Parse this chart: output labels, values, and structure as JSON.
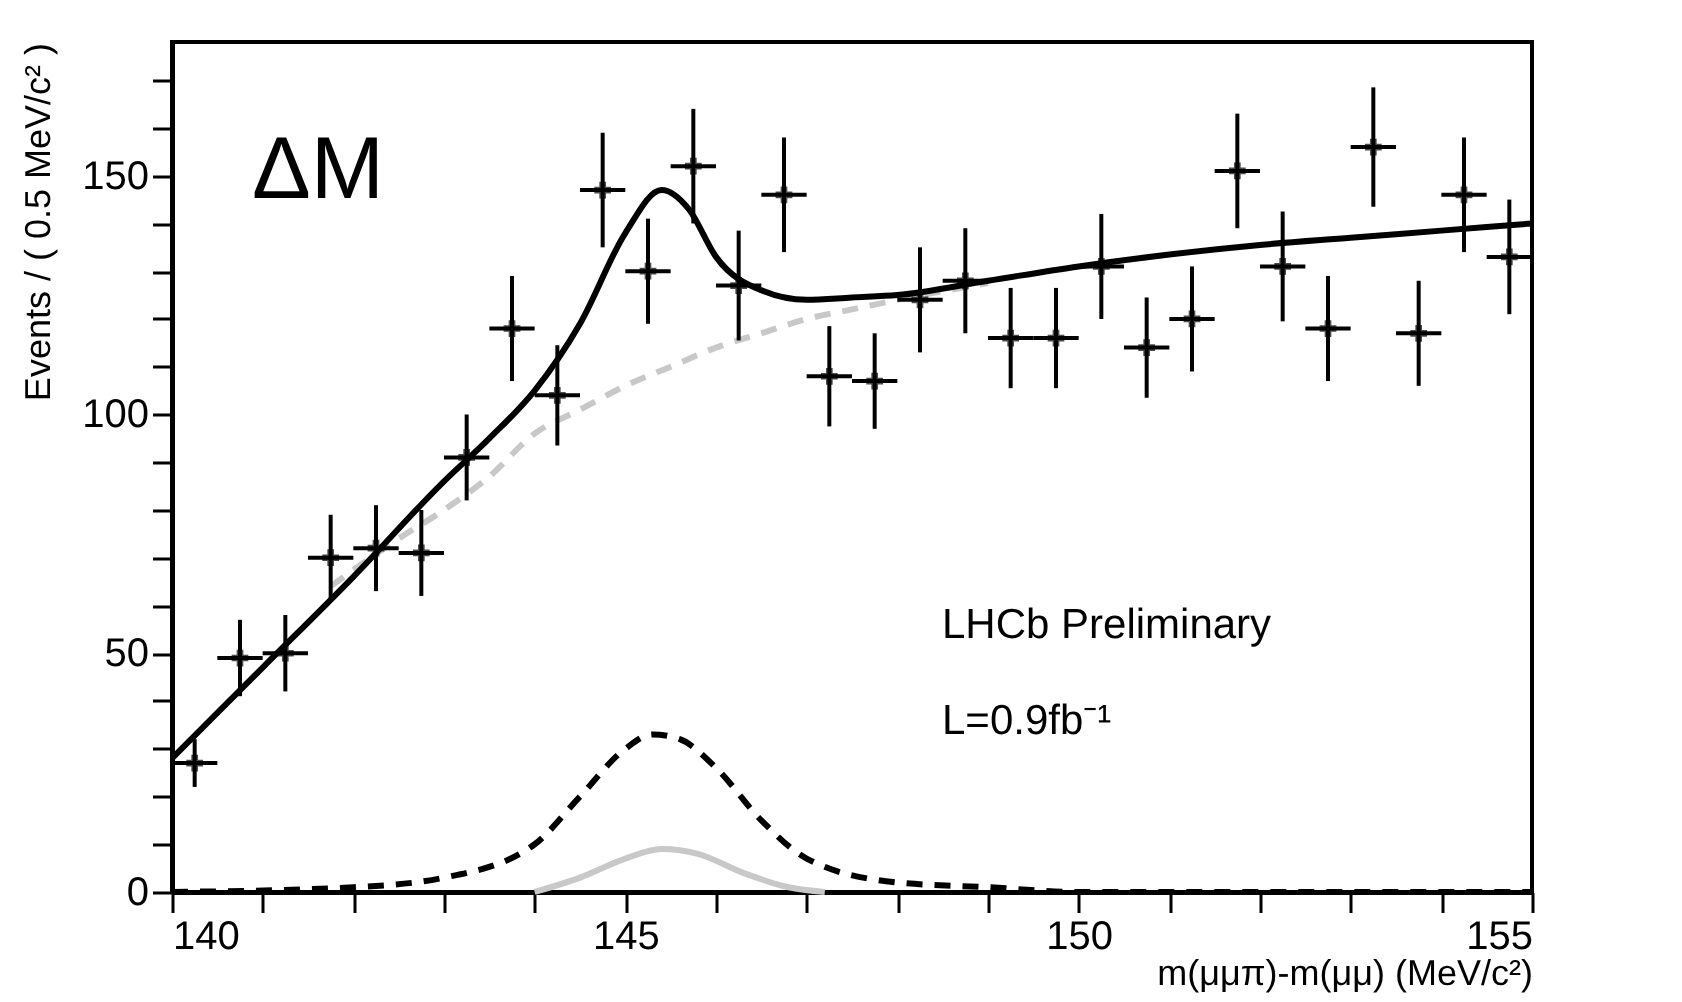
{
  "chart_data": {
    "type": "scatter",
    "xlabel": "m(μμπ)-m(μμ) (MeV/c²)",
    "ylabel": "Events / ( 0.5 MeV/c² )",
    "xlim": [
      140,
      155
    ],
    "ylim": [
      0,
      178
    ],
    "xticks": [
      140,
      {
        "value": 141,
        "label": null
      },
      {
        "value": 142,
        "label": null
      },
      {
        "value": 143,
        "label": null
      },
      {
        "value": 144,
        "label": null
      },
      145,
      {
        "value": 146,
        "label": null
      },
      {
        "value": 147,
        "label": null
      },
      {
        "value": 148,
        "label": null
      },
      {
        "value": 149,
        "label": null
      },
      150,
      {
        "value": 151,
        "label": null
      },
      {
        "value": 152,
        "label": null
      },
      {
        "value": 153,
        "label": null
      },
      {
        "value": 154,
        "label": null
      },
      155
    ],
    "yticks": [
      0,
      {
        "value": 10,
        "label": null
      },
      {
        "value": 20,
        "label": null
      },
      {
        "value": 30,
        "label": null
      },
      {
        "value": 40,
        "label": null
      },
      50,
      {
        "value": 60,
        "label": null
      },
      {
        "value": 70,
        "label": null
      },
      {
        "value": 80,
        "label": null
      },
      {
        "value": 90,
        "label": null
      },
      100,
      {
        "value": 110,
        "label": null
      },
      {
        "value": 120,
        "label": null
      },
      {
        "value": 130,
        "label": null
      },
      {
        "value": 140,
        "label": null
      },
      150,
      {
        "value": 160,
        "label": null
      },
      {
        "value": 170,
        "label": null
      }
    ],
    "annotations": [
      "ΔM",
      "LHCb Preliminary",
      "L=0.9fb⁻¹"
    ],
    "series": [
      {
        "type": "line",
        "color": "#c8c8c8",
        "line_style": "dashed",
        "x": [
          141.75,
          142.5,
          143,
          143.5,
          144,
          144.5,
          145,
          145.5,
          146,
          146.5,
          147,
          147.5,
          148,
          149
        ],
        "values": [
          64,
          74,
          80,
          87,
          96,
          101,
          106,
          110,
          114,
          117,
          120,
          122,
          124,
          127.5
        ]
      },
      {
        "type": "line",
        "color": "#c8c8c8",
        "line_style": "solid",
        "x": [
          144,
          144.5,
          145,
          145.4,
          145.8,
          146.3,
          146.8,
          147.2
        ],
        "values": [
          0,
          3,
          7,
          9,
          8,
          4,
          1,
          0
        ]
      },
      {
        "type": "line",
        "color": "#000000",
        "line_style": "dashed",
        "x": [
          140,
          142,
          143,
          144,
          144.5,
          145,
          145.3,
          145.6,
          146,
          146.5,
          147,
          148,
          149,
          150,
          155
        ],
        "values": [
          0,
          1,
          3,
          10,
          20,
          30,
          33,
          32,
          26,
          15,
          7,
          2,
          1,
          0,
          0
        ]
      },
      {
        "type": "line",
        "color": "#000000",
        "line_style": "solid",
        "x": [
          140,
          141,
          142,
          143,
          143.5,
          144,
          144.5,
          145,
          145.4,
          145.7,
          146,
          146.5,
          147,
          147.5,
          148,
          149,
          150,
          151,
          152,
          153,
          154,
          155
        ],
        "values": [
          28,
          47,
          66,
          86,
          95,
          105,
          119,
          138,
          147,
          143,
          133,
          126,
          124,
          124.5,
          125,
          128,
          131,
          133.5,
          135.5,
          137,
          138.5,
          140
        ]
      },
      {
        "color": "#000000",
        "marker": "cross",
        "x": [
          140.25,
          140.75,
          141.25,
          141.75,
          142.25,
          142.75,
          143.25,
          143.75,
          144.25,
          144.75,
          145.25,
          145.75,
          146.25,
          146.75,
          147.25,
          147.75,
          148.25,
          148.75,
          149.25,
          149.75,
          150.25,
          150.75,
          151.25,
          151.75,
          152.25,
          152.75,
          153.25,
          153.75,
          154.25,
          154.75
        ],
        "values": [
          27,
          49,
          50,
          70,
          72,
          71,
          91,
          118,
          104,
          147,
          130,
          152,
          127,
          146,
          108,
          107,
          124,
          128,
          116,
          116,
          131,
          114,
          120,
          151,
          131,
          118,
          156,
          117,
          146,
          133
        ],
        "errors": [
          5,
          8,
          8,
          9,
          9,
          9,
          9,
          11,
          10.5,
          12,
          11,
          12,
          11.5,
          12,
          10.5,
          10,
          11,
          11,
          10.5,
          10.5,
          11,
          10.5,
          11,
          12,
          11.5,
          11,
          12.5,
          11,
          12,
          12
        ],
        "xerrors": [
          0.25,
          0.25,
          0.25,
          0.25,
          0.25,
          0.25,
          0.25,
          0.25,
          0.25,
          0.25,
          0.25,
          0.25,
          0.25,
          0.25,
          0.25,
          0.25,
          0.25,
          0.25,
          0.25,
          0.25,
          0.25,
          0.25,
          0.25,
          0.25,
          0.25,
          0.25,
          0.25,
          0.25,
          0.25,
          0.25
        ]
      }
    ]
  }
}
